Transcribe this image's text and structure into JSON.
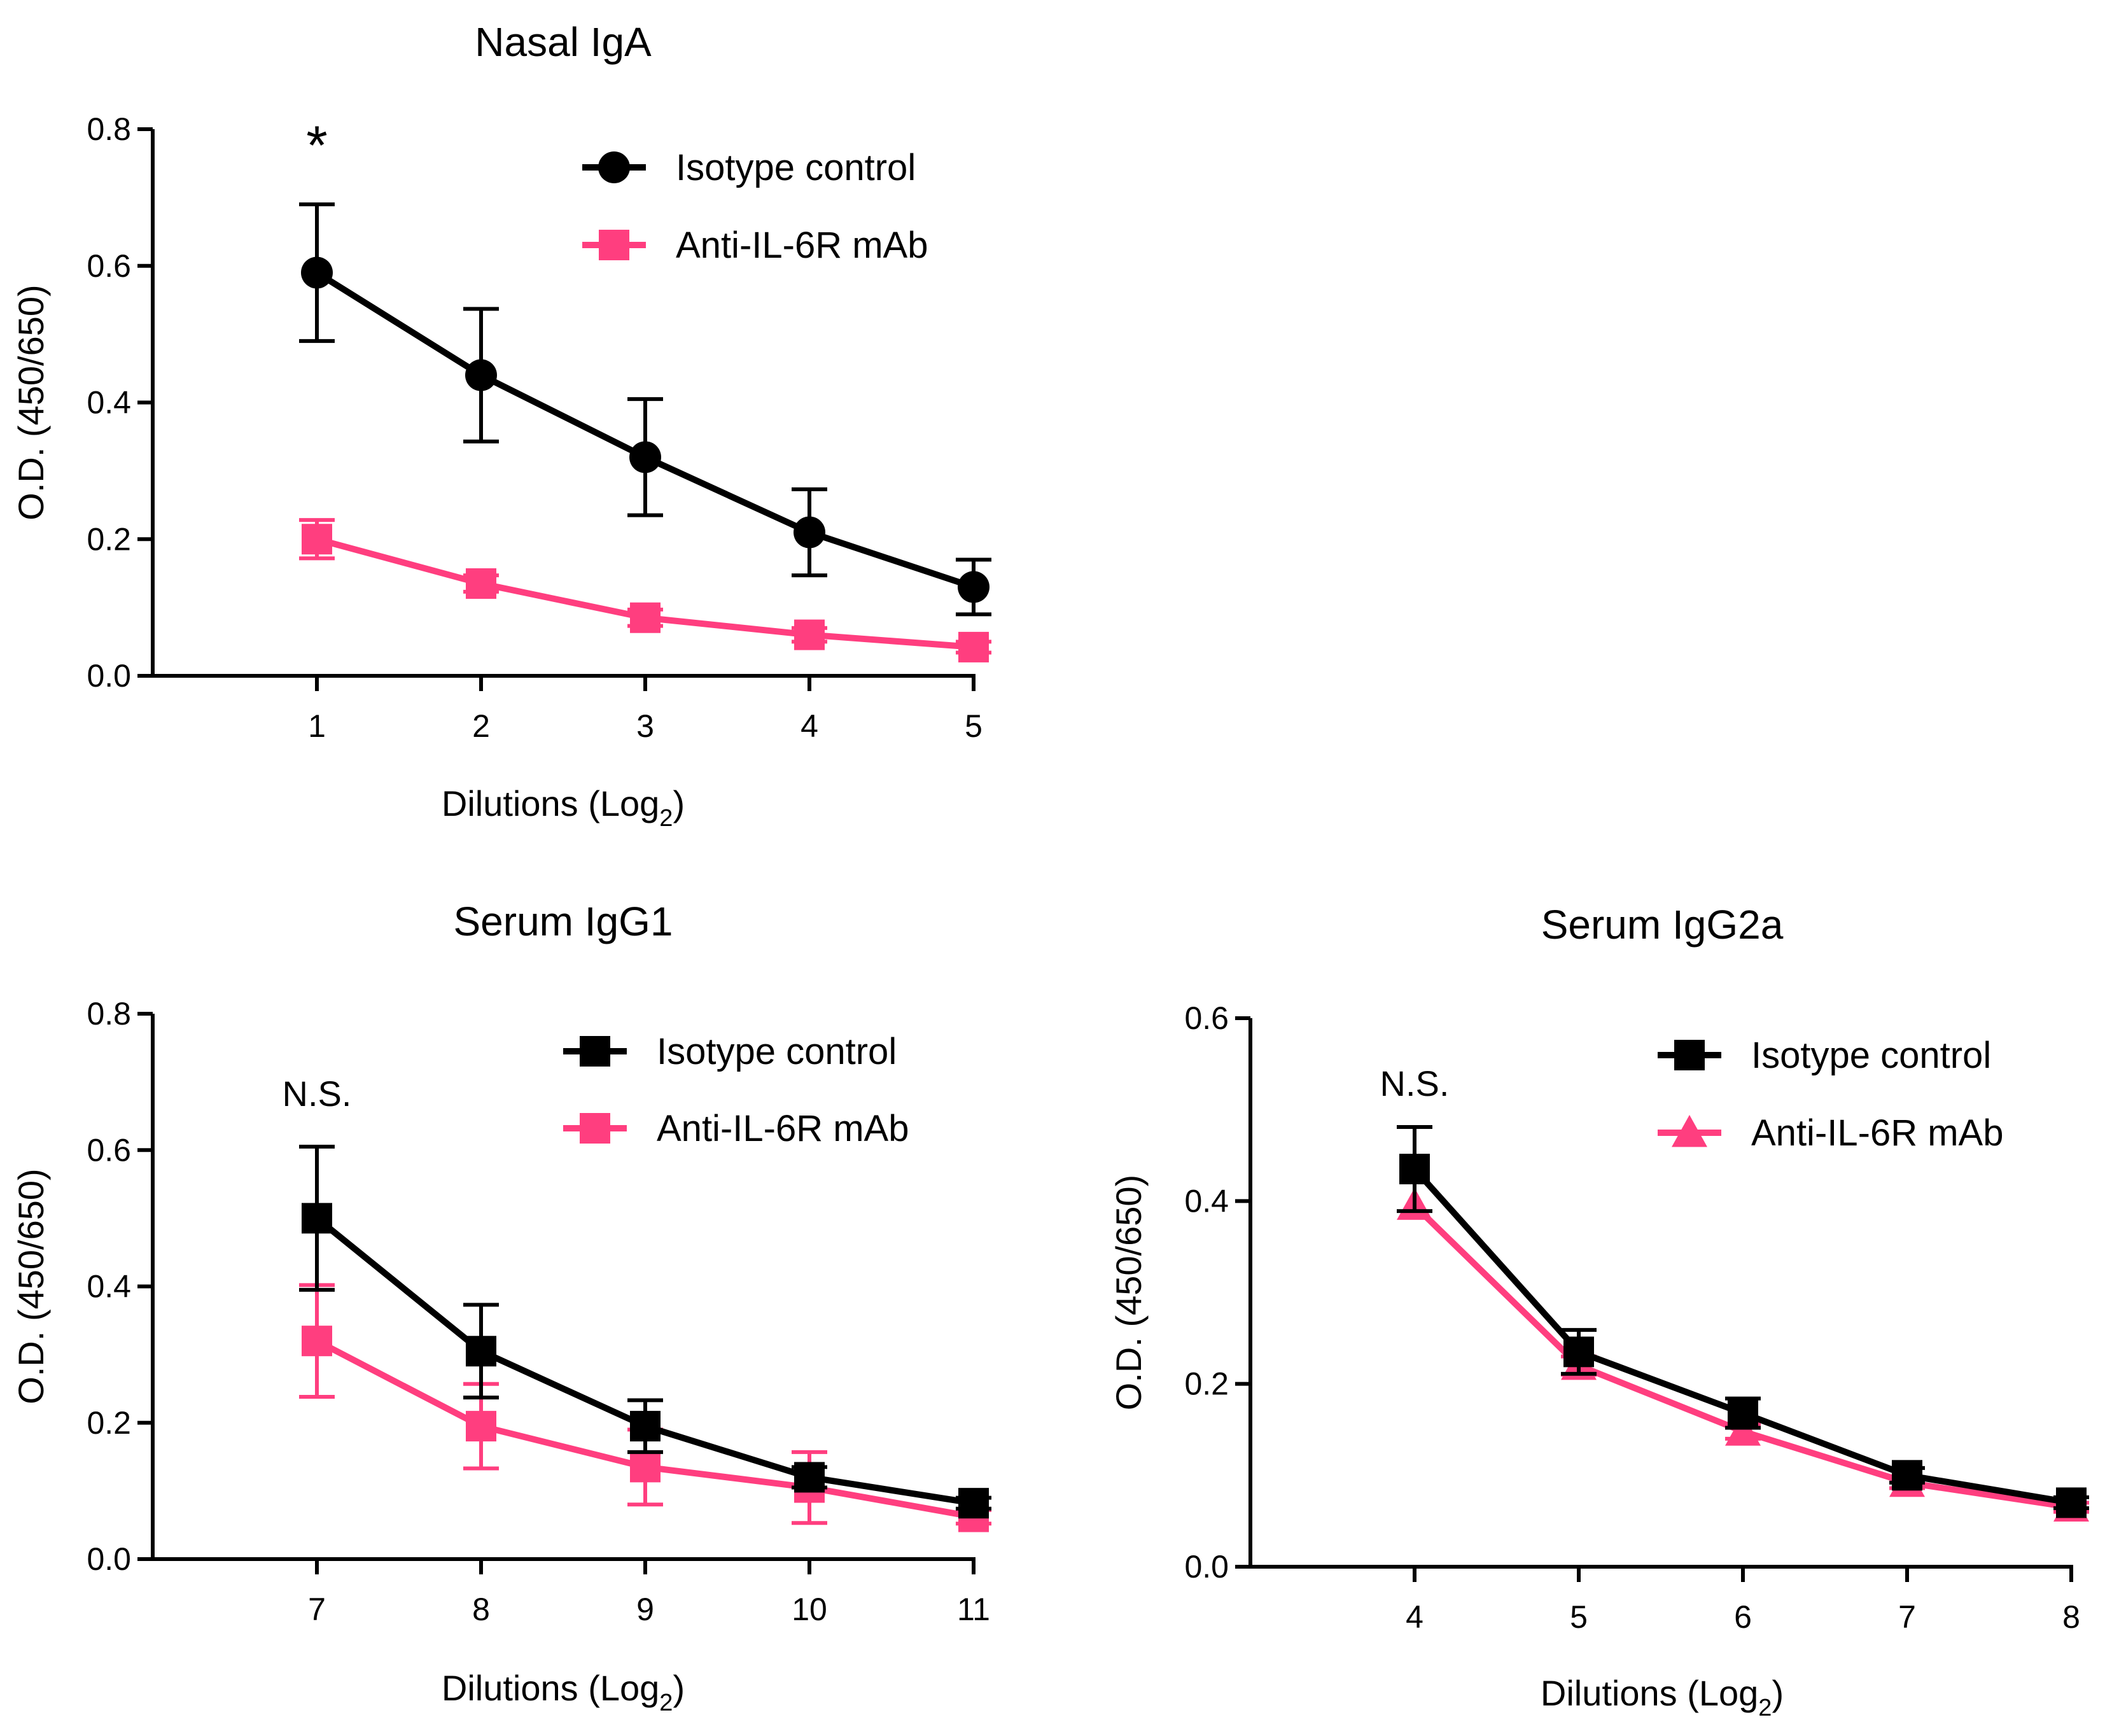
{
  "figure": {
    "panels_count": 3
  },
  "chart_data": [
    {
      "type": "line",
      "title": "Nasal IgA",
      "xlabel": "Dilutions (Log",
      "xlabel_sub": "2",
      "xlabel_end": ")",
      "ylabel": "O.D. (450/650)",
      "xlim": [
        0,
        5
      ],
      "ylim": [
        0,
        0.8
      ],
      "x": [
        1,
        2,
        3,
        4,
        5
      ],
      "xticks": [
        1,
        2,
        3,
        4,
        5
      ],
      "yticks": [
        0.0,
        0.2,
        0.4,
        0.6,
        0.8
      ],
      "yticklabels": [
        "0.0",
        "0.2",
        "0.4",
        "0.6",
        "0.8"
      ],
      "series": [
        {
          "name": "Isotype control",
          "color": "#000000",
          "marker": "circle",
          "values": [
            0.59,
            0.44,
            0.32,
            0.21,
            0.13
          ],
          "err": [
            0.1,
            0.097,
            0.085,
            0.063,
            0.04
          ]
        },
        {
          "name": "Anti-IL-6R mAb",
          "color": "#ff3e7f",
          "marker": "square",
          "values": [
            0.2,
            0.135,
            0.085,
            0.06,
            0.042
          ],
          "err": [
            0.028,
            0.012,
            0.012,
            0.01,
            0.008
          ]
        }
      ],
      "annotations": [
        {
          "text": "*",
          "x": 1
        }
      ],
      "legend": "top-right"
    },
    {
      "type": "line",
      "title": "Serum IgG1",
      "xlabel": "Dilutions (Log",
      "xlabel_sub": "2",
      "xlabel_end": ")",
      "ylabel": "O.D. (450/650)",
      "xlim": [
        6,
        11
      ],
      "ylim": [
        0,
        0.8
      ],
      "x": [
        7,
        8,
        9,
        10,
        11
      ],
      "xticks": [
        7,
        8,
        9,
        10,
        11
      ],
      "yticks": [
        0.0,
        0.2,
        0.4,
        0.6,
        0.8
      ],
      "yticklabels": [
        "0.0",
        "0.2",
        "0.4",
        "0.6",
        "0.8"
      ],
      "series": [
        {
          "name": "Isotype control",
          "color": "#000000",
          "marker": "square",
          "values": [
            0.5,
            0.305,
            0.195,
            0.12,
            0.082
          ],
          "err": [
            0.105,
            0.068,
            0.038,
            0.015,
            0.008
          ]
        },
        {
          "name": "Anti-IL-6R mAb",
          "color": "#ff3e7f",
          "marker": "square",
          "values": [
            0.32,
            0.195,
            0.135,
            0.105,
            0.062
          ],
          "err": [
            0.082,
            0.062,
            0.055,
            0.052,
            0.01
          ]
        }
      ],
      "annotations": [
        {
          "text": "N.S.",
          "x": 7
        }
      ],
      "legend": "top-right"
    },
    {
      "type": "line",
      "title": "Serum IgG2a",
      "xlabel": "Dilutions (Log",
      "xlabel_sub": "2",
      "xlabel_end": ")",
      "ylabel": "O.D. (450/650)",
      "xlim": [
        3,
        8
      ],
      "ylim": [
        0,
        0.6
      ],
      "x": [
        4,
        5,
        6,
        7,
        8
      ],
      "xticks": [
        4,
        5,
        6,
        7,
        8
      ],
      "yticks": [
        0.0,
        0.2,
        0.4,
        0.6
      ],
      "yticklabels": [
        "0.0",
        "0.2",
        "0.4",
        "0.6"
      ],
      "series": [
        {
          "name": "Isotype control",
          "color": "#000000",
          "marker": "square",
          "values": [
            0.435,
            0.235,
            0.168,
            0.1,
            0.07
          ],
          "err": [
            0.046,
            0.024,
            0.016,
            0.008,
            0.006
          ]
        },
        {
          "name": "Anti-IL-6R mAb",
          "color": "#ff3e7f",
          "marker": "triangle",
          "values": [
            0.395,
            0.22,
            0.148,
            0.092,
            0.065
          ],
          "err": [
            0.0,
            0.01,
            0.008,
            0.006,
            0.005
          ]
        }
      ],
      "annotations": [
        {
          "text": "N.S.",
          "x": 4
        }
      ],
      "legend": "top-right"
    }
  ]
}
